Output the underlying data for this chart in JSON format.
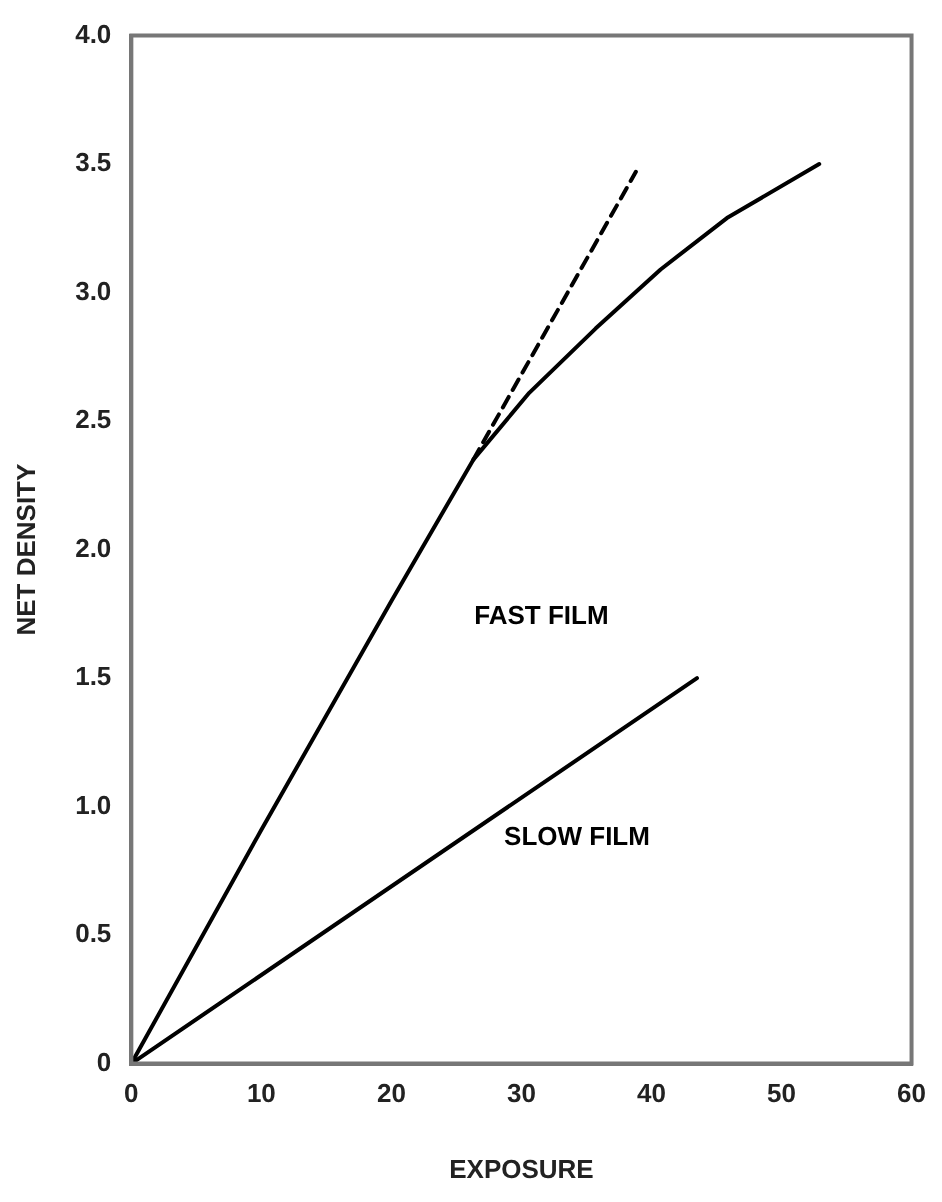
{
  "chart_data": {
    "type": "line",
    "xlabel": "EXPOSURE",
    "ylabel": "NET DENSITY",
    "xlim": [
      0,
      60
    ],
    "xticks": [
      0,
      10,
      20,
      30,
      40,
      50,
      60
    ],
    "ylim": [
      0,
      4
    ],
    "yticks": [
      0,
      {
        "value": 0.5,
        "label": "0.5"
      },
      {
        "value": 1,
        "label": "1.0"
      },
      {
        "value": 1.5,
        "label": "1.5"
      },
      {
        "value": 2,
        "label": "2.0"
      },
      {
        "value": 2.5,
        "label": "2.5"
      },
      {
        "value": 3,
        "label": "3.0"
      },
      {
        "value": 3.5,
        "label": "3.5"
      },
      {
        "value": 4,
        "label": "4.0"
      }
    ],
    "grid": false,
    "legend": false,
    "marker": "none",
    "series": [
      {
        "name": "FAST FILM",
        "color": "#000000",
        "x": [
          0,
          10,
          20,
          26.3,
          30.6,
          35.7,
          40.7,
          45.8,
          52.9
        ],
        "values": [
          0,
          0.91,
          1.8,
          2.35,
          2.61,
          2.86,
          3.09,
          3.29,
          3.5
        ]
      },
      {
        "color": "#000000",
        "x": [
          26.3,
          38.8
        ],
        "values": [
          2.35,
          3.47
        ],
        "line_style": "dashed"
      },
      {
        "name": "SLOW FILM",
        "color": "#000000",
        "x": [
          0,
          43.5
        ],
        "values": [
          0,
          1.5
        ]
      }
    ]
  }
}
